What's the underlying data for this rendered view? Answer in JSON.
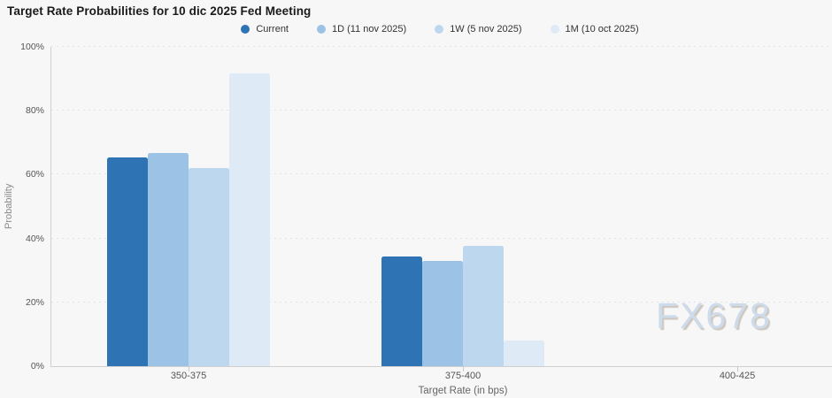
{
  "title": "Target Rate Probabilities for 10 dic 2025 Fed Meeting",
  "watermark": "FX678",
  "background_color": "#f7f7f8",
  "legend": {
    "position": "top-center",
    "items": [
      {
        "label": "Current",
        "color": "#2E74B5"
      },
      {
        "label": "1D (11 nov 2025)",
        "color": "#9CC2E5"
      },
      {
        "label": "1W (5 nov 2025)",
        "color": "#BDD7EE"
      },
      {
        "label": "1M (10 oct 2025)",
        "color": "#DEEAF6"
      }
    ]
  },
  "y_axis": {
    "label": "Probability",
    "tick_labels": [
      "0%",
      "20%",
      "40%",
      "60%",
      "80%",
      "100%"
    ],
    "tick_values": [
      0,
      20,
      40,
      60,
      80,
      100
    ]
  },
  "x_axis": {
    "label": "Target Rate (in bps)",
    "categories": [
      "350-375",
      "375-400",
      "400-425"
    ]
  },
  "chart_data": {
    "type": "bar",
    "title": "Target Rate Probabilities for 10 dic 2025 Fed Meeting",
    "xlabel": "Target Rate (in bps)",
    "ylabel": "Probability",
    "ylim": [
      0,
      100
    ],
    "grid": "horizontal-dotted",
    "legend_position": "top-center",
    "categories": [
      "350-375",
      "375-400",
      "400-425"
    ],
    "series": [
      {
        "name": "Current",
        "color": "#2E74B5",
        "values": [
          65.4,
          34.4,
          0
        ]
      },
      {
        "name": "1D (11 nov 2025)",
        "color": "#9CC2E5",
        "values": [
          66.8,
          33.0,
          0
        ]
      },
      {
        "name": "1W (5 nov 2025)",
        "color": "#BDD7EE",
        "values": [
          62.0,
          37.8,
          0
        ]
      },
      {
        "name": "1M (10 oct 2025)",
        "color": "#DEEAF6",
        "values": [
          91.8,
          8.0,
          0
        ]
      }
    ]
  }
}
